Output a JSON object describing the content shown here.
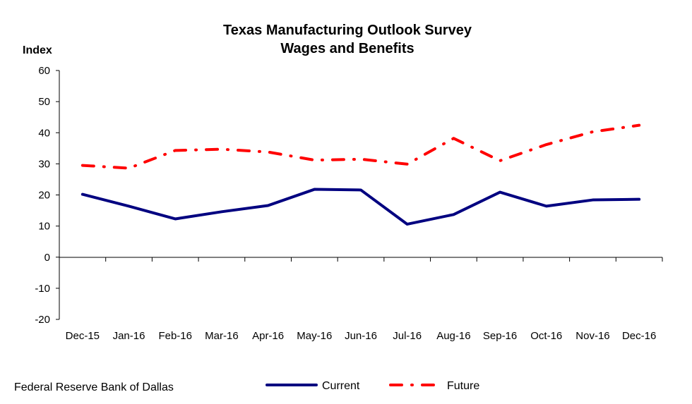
{
  "chart_data": {
    "type": "line",
    "title": "Texas Manufacturing Outlook Survey",
    "subtitle": "Wages and Benefits",
    "ylabel": "Index",
    "xlabel": "",
    "categories": [
      "Dec-15",
      "Jan-16",
      "Feb-16",
      "Mar-16",
      "Apr-16",
      "May-16",
      "Jun-16",
      "Jul-16",
      "Aug-16",
      "Sep-16",
      "Oct-16",
      "Nov-16",
      "Dec-16"
    ],
    "ylim": [
      -20,
      60
    ],
    "yticks": [
      -20,
      -10,
      0,
      10,
      20,
      30,
      40,
      50,
      60
    ],
    "grid": false,
    "legend_position": "bottom",
    "series": [
      {
        "name": "Current",
        "color": "#000080",
        "style": "solid",
        "values": [
          20.2,
          16.4,
          12.3,
          14.6,
          16.6,
          21.8,
          21.6,
          10.6,
          13.7,
          20.9,
          16.4,
          18.4,
          18.6
        ]
      },
      {
        "name": "Future",
        "color": "#ff0000",
        "style": "dash-dot",
        "values": [
          29.5,
          28.6,
          34.3,
          34.7,
          33.8,
          31.2,
          31.5,
          29.9,
          38.2,
          31.0,
          36.2,
          40.3,
          42.4
        ]
      }
    ]
  },
  "source": "Federal Reserve Bank of Dallas"
}
